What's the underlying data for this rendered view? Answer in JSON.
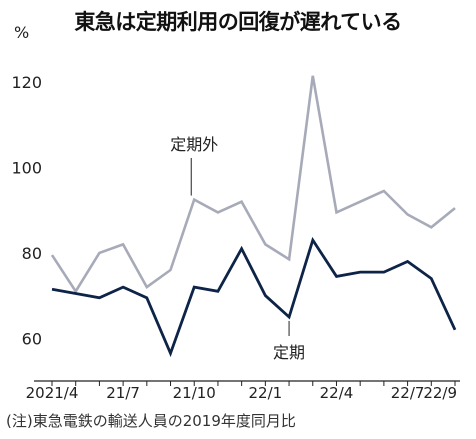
{
  "title": "東急は定期利用の回復が遅れている",
  "unit_label": "%",
  "note": "(注)東急電鉄の輸送人員の2019年度同月比",
  "colors": {
    "outside": "#a7aab8",
    "commuter": "#0d2347",
    "axis": "#222222",
    "text": "#222222"
  },
  "chart_data": {
    "type": "line",
    "title": "東急は定期利用の回復が遅れている",
    "ylabel": "%",
    "ylim": [
      50,
      128
    ],
    "yticks": [
      60,
      80,
      100,
      120
    ],
    "x": [
      "2021/4",
      "2021/5",
      "2021/6",
      "2021/7",
      "2021/8",
      "2021/9",
      "2021/10",
      "2021/11",
      "2021/12",
      "2022/1",
      "2022/2",
      "2022/3",
      "2022/4",
      "2022/5",
      "2022/6",
      "2022/7",
      "2022/8",
      "2022/9"
    ],
    "xtick_labels": [
      {
        "index": 0,
        "label": "2021/4"
      },
      {
        "index": 3,
        "label": "21/7"
      },
      {
        "index": 6,
        "label": "21/10"
      },
      {
        "index": 9,
        "label": "22/1"
      },
      {
        "index": 12,
        "label": "22/4"
      },
      {
        "index": 15,
        "label": "22/7"
      },
      {
        "index": 17,
        "label": "22/9"
      }
    ],
    "grid": false,
    "series": [
      {
        "name": "定期外",
        "color": "#a7aab8",
        "label_index": 6,
        "values": [
          79.5,
          71,
          80,
          82,
          72,
          76,
          92.5,
          89.5,
          92,
          82,
          78.5,
          121.5,
          89.5,
          92,
          94.5,
          89,
          86,
          90.5
        ]
      },
      {
        "name": "定期",
        "color": "#0d2347",
        "label_index": 10,
        "values": [
          71.5,
          70.5,
          69.5,
          72,
          69.5,
          56.5,
          72,
          71,
          81,
          70,
          65,
          83,
          74.5,
          75.5,
          75.5,
          78,
          74,
          62
        ]
      }
    ]
  }
}
